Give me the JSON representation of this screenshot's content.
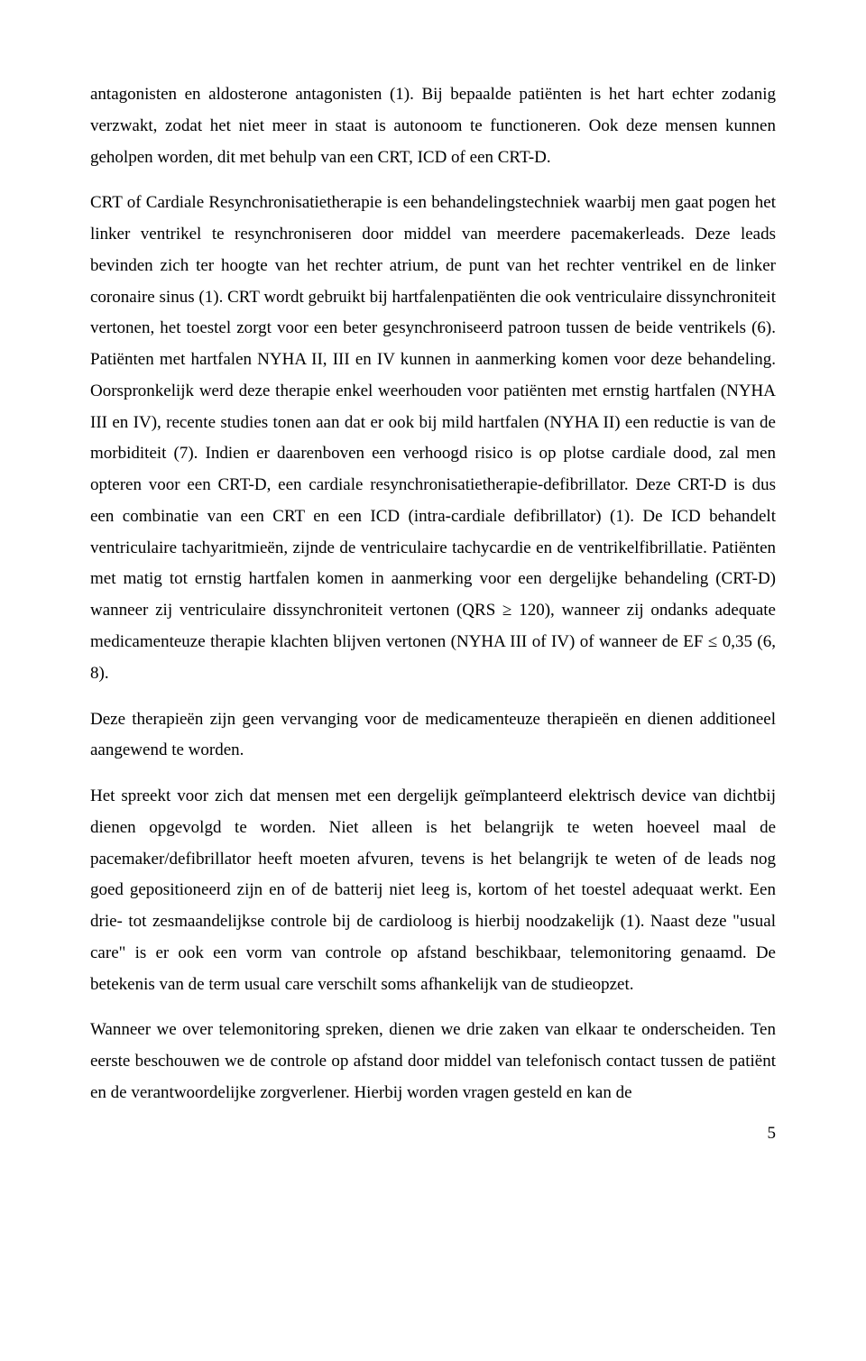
{
  "document": {
    "page_number": "5",
    "font_family": "Times New Roman",
    "font_size_pt": 12,
    "line_height": 1.83,
    "text_color": "#000000",
    "background_color": "#ffffff",
    "text_align": "justify",
    "paragraphs": [
      "antagonisten en aldosterone antagonisten (1). Bij bepaalde patiënten is het hart echter zodanig verzwakt, zodat het niet meer in staat is autonoom te functioneren. Ook deze mensen kunnen geholpen worden, dit met behulp van een CRT, ICD of een CRT-D.",
      "CRT of Cardiale Resynchronisatietherapie is een behandelingstechniek waarbij men gaat pogen het linker ventrikel te resynchroniseren door middel van meerdere pacemakerleads. Deze leads bevinden zich ter hoogte van het rechter atrium, de punt van het rechter ventrikel en de linker coronaire sinus (1). CRT wordt gebruikt bij hartfalenpatiënten die ook ventriculaire dissynchroniteit vertonen, het toestel zorgt voor een beter gesynchroniseerd patroon tussen de beide ventrikels (6). Patiënten met hartfalen NYHA II, III en IV kunnen in aanmerking komen voor deze behandeling. Oorspronkelijk werd deze therapie enkel weerhouden voor patiënten met ernstig hartfalen (NYHA III en IV), recente studies tonen aan dat er ook bij mild hartfalen (NYHA II) een reductie is van de morbiditeit (7). Indien er daarenboven een verhoogd risico is op plotse cardiale dood, zal men opteren voor een CRT-D, een cardiale resynchronisatietherapie-defibrillator. Deze CRT-D is dus een combinatie van een CRT en een ICD (intra-cardiale defibrillator) (1). De ICD behandelt ventriculaire tachyaritmieën, zijnde de ventriculaire tachycardie en de ventrikelfibrillatie. Patiënten met matig tot ernstig hartfalen komen in aanmerking voor een dergelijke behandeling (CRT-D) wanneer zij ventriculaire dissynchroniteit vertonen (QRS ≥ 120), wanneer zij ondanks adequate medicamenteuze therapie klachten blijven vertonen (NYHA III of IV) of wanneer de EF ≤ 0,35 (6, 8).",
      "Deze therapieën zijn geen vervanging voor de medicamenteuze therapieën en dienen additioneel aangewend te worden.",
      "Het spreekt voor zich dat mensen met een dergelijk geïmplanteerd elektrisch device van dichtbij dienen opgevolgd te worden. Niet alleen is het belangrijk te weten hoeveel maal de pacemaker/defibrillator heeft moeten afvuren, tevens is het belangrijk te weten of de leads nog goed gepositioneerd zijn en of de batterij niet leeg is, kortom of het toestel adequaat werkt. Een drie- tot zesmaandelijkse controle bij de cardioloog is hierbij noodzakelijk (1). Naast deze \"usual care\" is er ook een vorm van controle op afstand beschikbaar, telemonitoring genaamd. De betekenis van de term usual care verschilt soms afhankelijk van de studieopzet.",
      "Wanneer we over telemonitoring spreken, dienen we drie zaken van elkaar te onderscheiden. Ten eerste beschouwen we de controle op afstand door middel van telefonisch contact tussen de patiënt en de verantwoordelijke zorgverlener. Hierbij worden vragen gesteld en kan de"
    ]
  }
}
